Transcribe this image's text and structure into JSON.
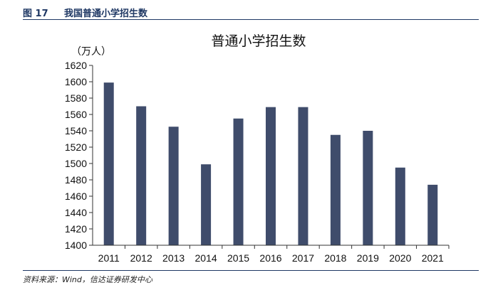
{
  "figure": {
    "number": "图 17",
    "caption": "我国普通小学招生数"
  },
  "source": "资料来源：Wind，信达证券研发中心",
  "chart_data": {
    "type": "bar",
    "title": "普通小学招生数",
    "ylabel": "（万人）",
    "xlabel": "",
    "ylim": [
      1400,
      1620
    ],
    "yticks": [
      1400,
      1420,
      1440,
      1460,
      1480,
      1500,
      1520,
      1540,
      1560,
      1580,
      1600,
      1620
    ],
    "categories": [
      "2011",
      "2012",
      "2013",
      "2014",
      "2015",
      "2016",
      "2017",
      "2018",
      "2019",
      "2020",
      "2021"
    ],
    "values": [
      1599,
      1570,
      1545,
      1499,
      1555,
      1569,
      1569,
      1535,
      1540,
      1495,
      1474
    ],
    "bar_color": "#3f4c6b",
    "grid": false,
    "legend": "none"
  }
}
